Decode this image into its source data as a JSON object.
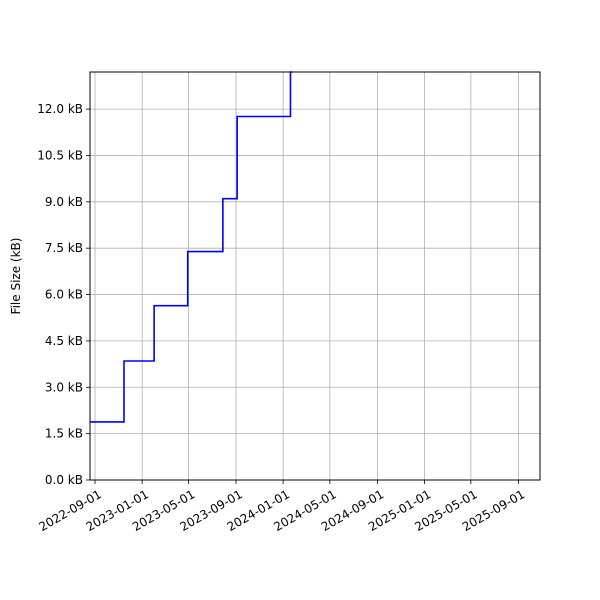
{
  "chart_data": {
    "type": "line",
    "title": "",
    "xlabel": "",
    "ylabel": "File Size (kB)",
    "grid": true,
    "line_color": "#0000ff",
    "step": true,
    "xlim": [
      "2022-08-19",
      "2025-10-27"
    ],
    "ylim": [
      0,
      13200
    ],
    "x_ticks": [
      "2022-09-01",
      "2023-01-01",
      "2023-05-01",
      "2023-09-01",
      "2024-01-01",
      "2024-05-01",
      "2024-09-01",
      "2025-01-01",
      "2025-05-01",
      "2025-09-01"
    ],
    "y_ticks": [
      0,
      1500,
      3000,
      4500,
      6000,
      7500,
      9000,
      10500,
      12000
    ],
    "y_tick_labels": [
      "0.0 kB",
      "1.5 kB",
      "3.0 kB",
      "4.5 kB",
      "6.0 kB",
      "7.5 kB",
      "9.0 kB",
      "10.5 kB",
      "12.0 kB"
    ],
    "series": [
      {
        "x": [
          "2022-08-19",
          "2022-11-15",
          "2023-02-01",
          "2023-04-29",
          "2023-07-29",
          "2023-09-04",
          "2024-01-20",
          "2024-01-25"
        ],
        "y": [
          1880,
          3850,
          5640,
          7390,
          9100,
          11760,
          13200,
          13200
        ]
      }
    ]
  }
}
